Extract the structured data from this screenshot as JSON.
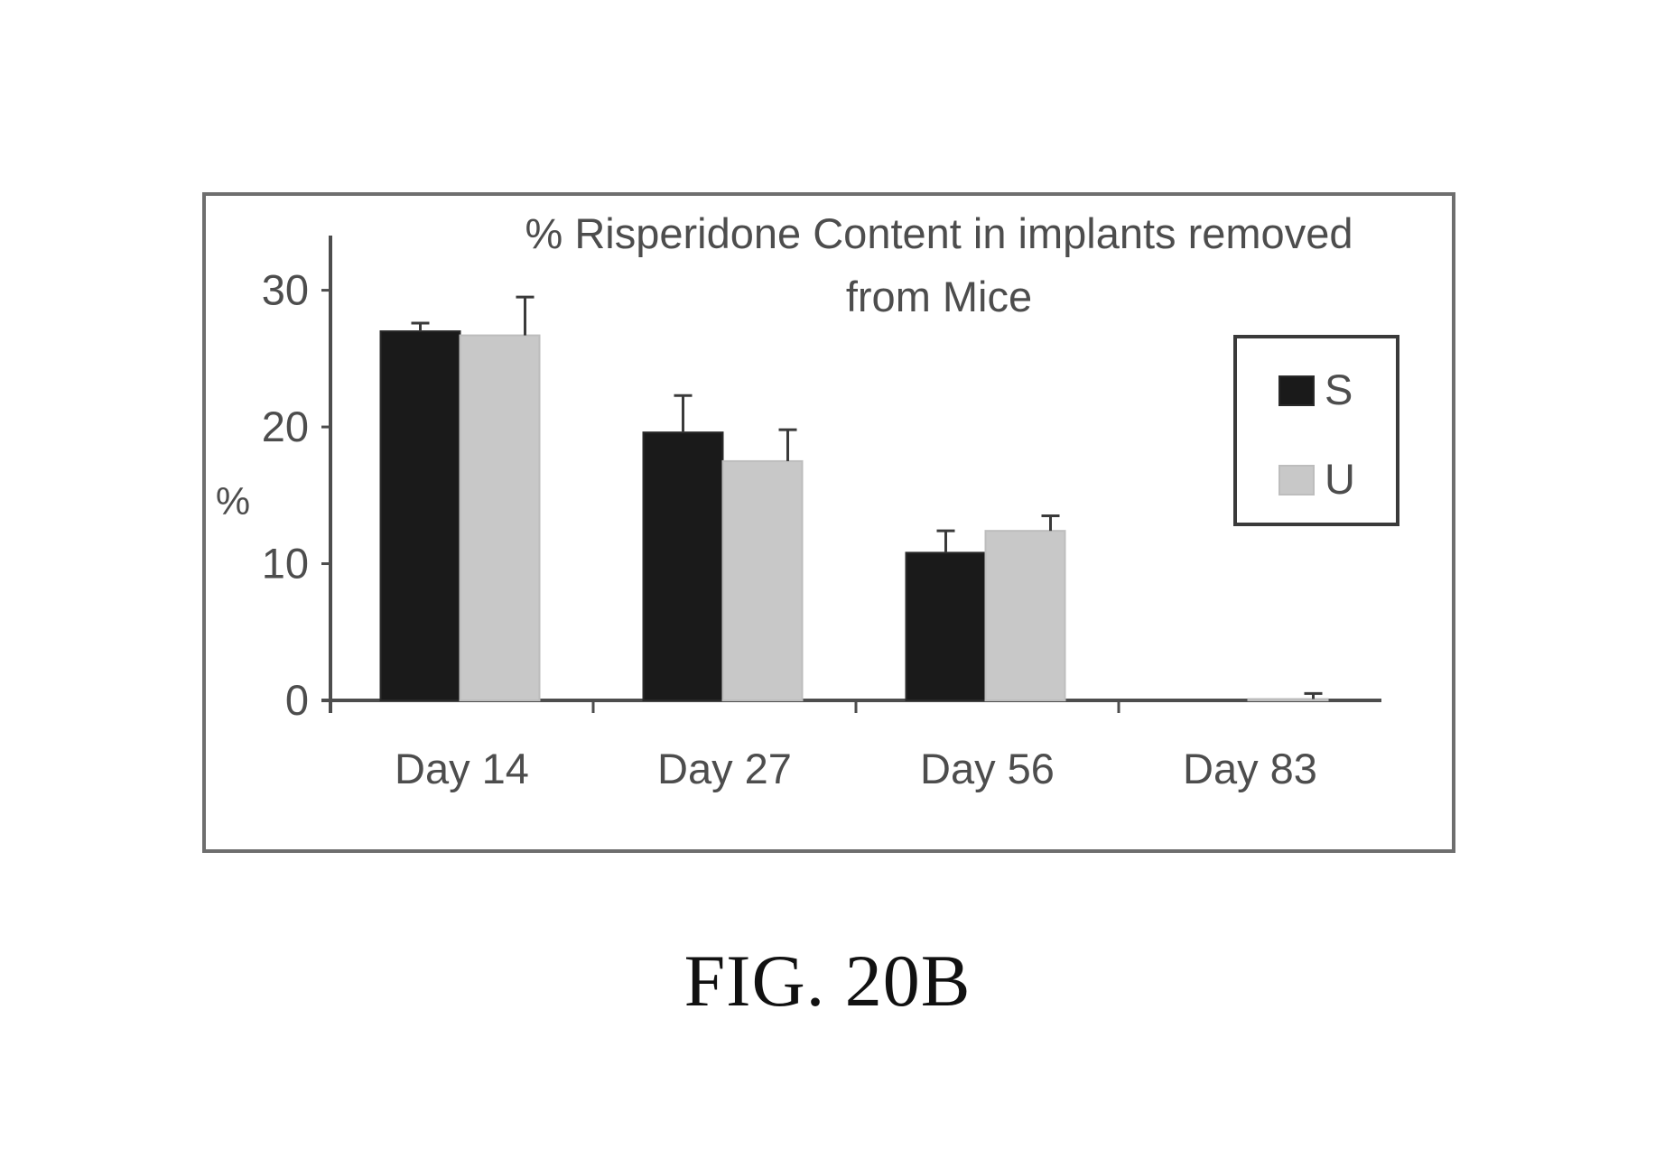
{
  "chart_data": {
    "type": "bar",
    "title": "% Risperidone Content in implants removed from Mice",
    "title_lines": [
      "% Risperidone Content in implants removed",
      "from Mice"
    ],
    "xlabel": "",
    "ylabel": "%",
    "ylim": [
      0,
      34
    ],
    "yticks": [
      0,
      10,
      20,
      30
    ],
    "grid": false,
    "legend_position": "right",
    "categories": [
      "Day 14",
      "Day 27",
      "Day 56",
      "Day 83"
    ],
    "series": [
      {
        "name": "S",
        "color": "#1a1a1a",
        "values": [
          27.0,
          19.6,
          10.8,
          0
        ],
        "errors": [
          0.6,
          2.7,
          1.6,
          0
        ]
      },
      {
        "name": "U",
        "color": "#c8c8c8",
        "values": [
          26.7,
          17.5,
          12.4,
          0.1
        ],
        "errors": [
          2.8,
          2.3,
          1.1,
          0.4
        ]
      }
    ]
  },
  "caption": "FIG. 20B"
}
